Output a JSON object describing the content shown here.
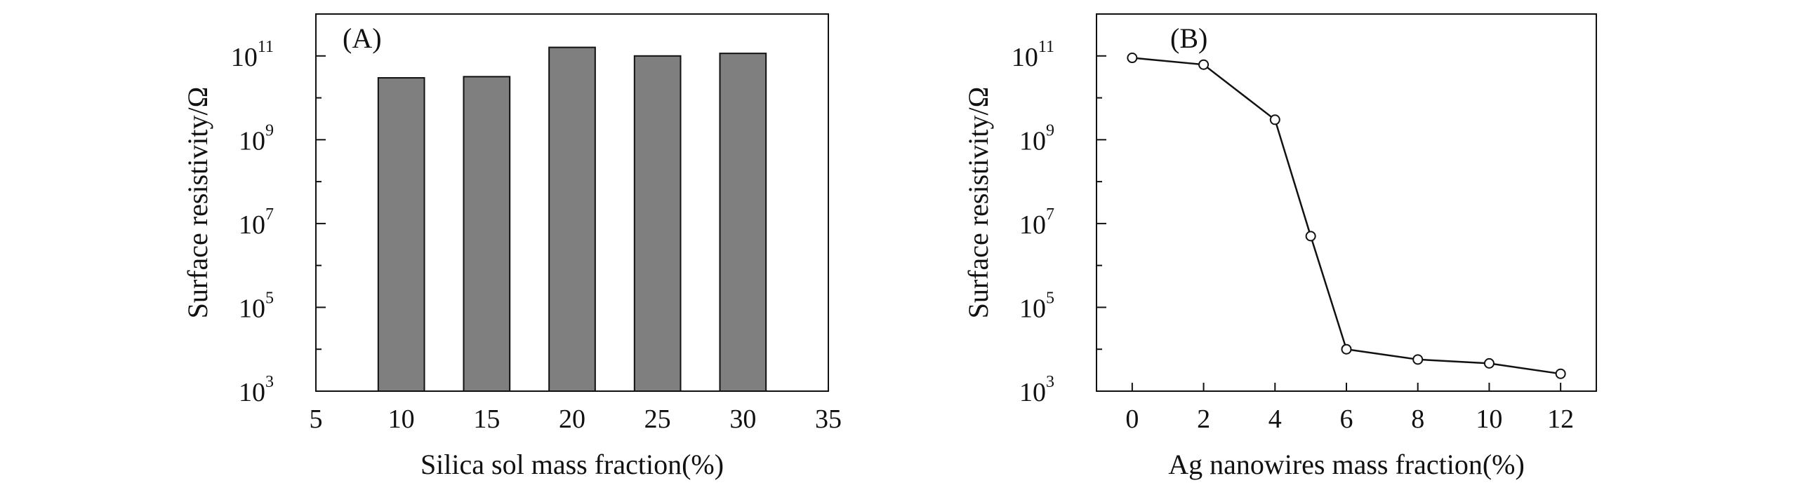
{
  "chart_data": [
    {
      "type": "bar",
      "panel_label": "(A)",
      "xlabel": "Silica sol mass fraction(%)",
      "ylabel": "Surface resistivity/Ω",
      "x": [
        10,
        15,
        20,
        25,
        30
      ],
      "values": [
        30000000000.0,
        32000000000.0,
        160000000000.0,
        100000000000.0,
        115000000000.0
      ],
      "xlim": [
        5,
        35
      ],
      "xticks": [
        "5",
        "10",
        "15",
        "20",
        "25",
        "30",
        "35"
      ],
      "yscale": "log",
      "ylim": [
        1000,
        1000000000000.0
      ],
      "yticks": [
        {
          "base": "10",
          "exp": "3"
        },
        {
          "base": "10",
          "exp": "5"
        },
        {
          "base": "10",
          "exp": "7"
        },
        {
          "base": "10",
          "exp": "9"
        },
        {
          "base": "10",
          "exp": "11"
        }
      ],
      "bar_color": "#7f7f7f",
      "grid": false
    },
    {
      "type": "line",
      "panel_label": "(B)",
      "xlabel": "Ag nanowires mass fraction(%)",
      "ylabel": "Surface resistivity/Ω",
      "x": [
        0,
        2,
        4,
        5,
        6,
        8,
        10,
        12
      ],
      "values": [
        90000000000.0,
        62000000000.0,
        3000000000.0,
        5000000.0,
        10000.0,
        5700.0,
        4600.0,
        2600.0
      ],
      "xlim": [
        -1,
        13
      ],
      "xticks": [
        "0",
        "2",
        "4",
        "6",
        "8",
        "10",
        "12"
      ],
      "yscale": "log",
      "ylim": [
        1000,
        1000000000000.0
      ],
      "yticks": [
        {
          "base": "10",
          "exp": "3"
        },
        {
          "base": "10",
          "exp": "5"
        },
        {
          "base": "10",
          "exp": "7"
        },
        {
          "base": "10",
          "exp": "9"
        },
        {
          "base": "10",
          "exp": "11"
        }
      ],
      "marker": "open-circle",
      "grid": false
    }
  ]
}
